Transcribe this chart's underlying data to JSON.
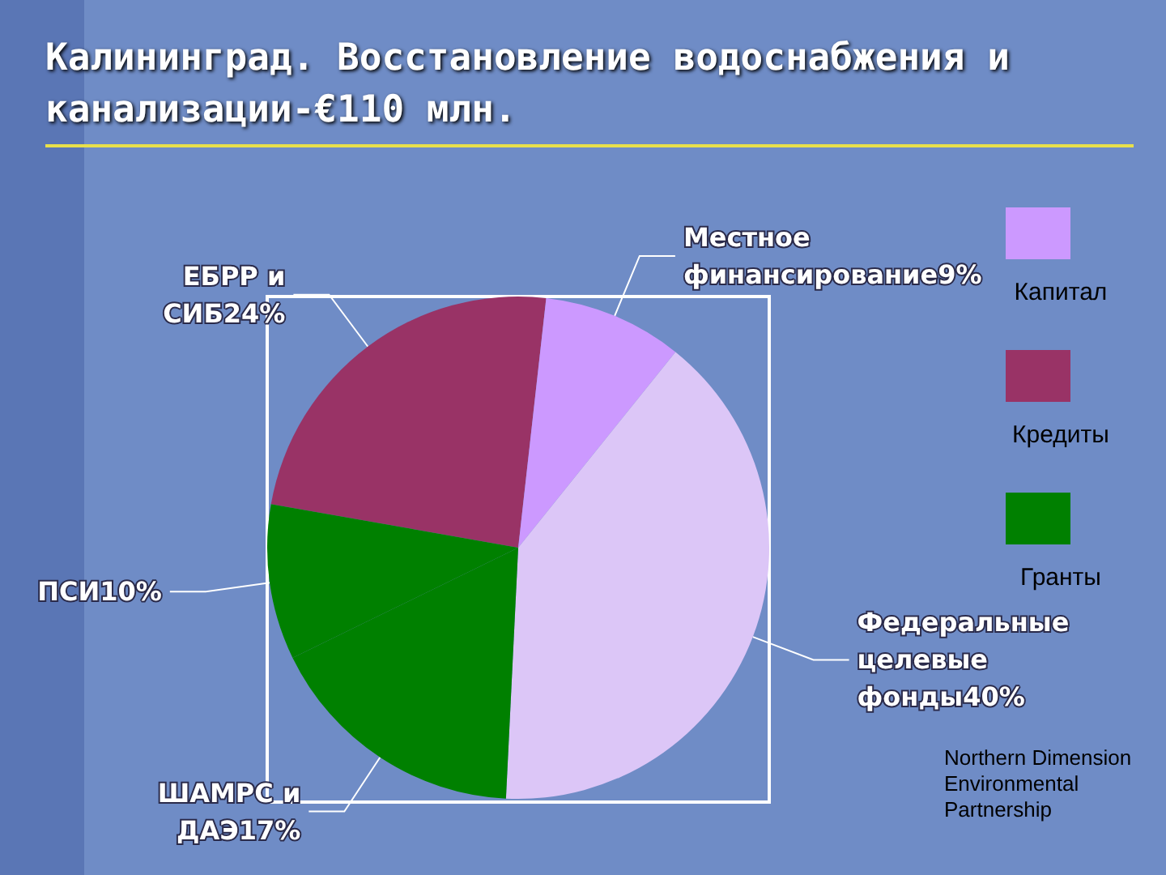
{
  "chart_data": {
    "type": "pie",
    "title": "Калининград. Восстановление водоснабжения и канализации-€110 млн.",
    "categories": [
      "ЕБРР и СИБ",
      "Местное финансирование",
      "Федеральные целевые фонды",
      "ШАМРС и ДАЭ",
      "ПСИ"
    ],
    "values": [
      24,
      9,
      40,
      17,
      10
    ],
    "value_labels": [
      "24%",
      "9%",
      "40%",
      "17%",
      "10%"
    ],
    "colors": [
      "#993366",
      "#cc99ff",
      "#dcc6f7",
      "#008000",
      "#008000"
    ],
    "annotations": [
      "Капитал",
      "Кредиты",
      "Гранты",
      "Northern Dimension Environmental Partnership"
    ]
  }
}
